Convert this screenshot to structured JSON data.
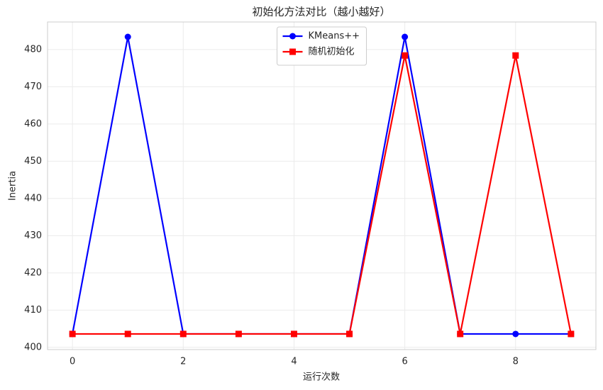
{
  "chart_data": {
    "type": "line",
    "title": "初始化方法对比（越小越好）",
    "x_label": "运行次数",
    "y_label": "Inertia",
    "x": [
      0,
      1,
      2,
      3,
      4,
      5,
      6,
      7,
      8,
      9
    ],
    "series": [
      {
        "name": "KMeans++",
        "color": "#0000ff",
        "marker": "circle",
        "values": [
          403.6,
          483.4,
          403.6,
          403.6,
          403.6,
          403.6,
          483.4,
          403.6,
          403.6,
          403.6
        ]
      },
      {
        "name": "随机初始化",
        "color": "#ff0000",
        "marker": "square",
        "values": [
          403.6,
          403.6,
          403.6,
          403.6,
          403.6,
          403.6,
          478.4,
          403.6,
          478.4,
          403.6
        ]
      }
    ],
    "xlim": [
      -0.45,
      9.45
    ],
    "xticks": [
      0,
      2,
      4,
      6,
      8
    ],
    "ylim": [
      399.4,
      487.4
    ],
    "yticks": [
      400,
      410,
      420,
      430,
      440,
      450,
      460,
      470,
      480
    ],
    "grid": true,
    "legend": "upper center"
  }
}
